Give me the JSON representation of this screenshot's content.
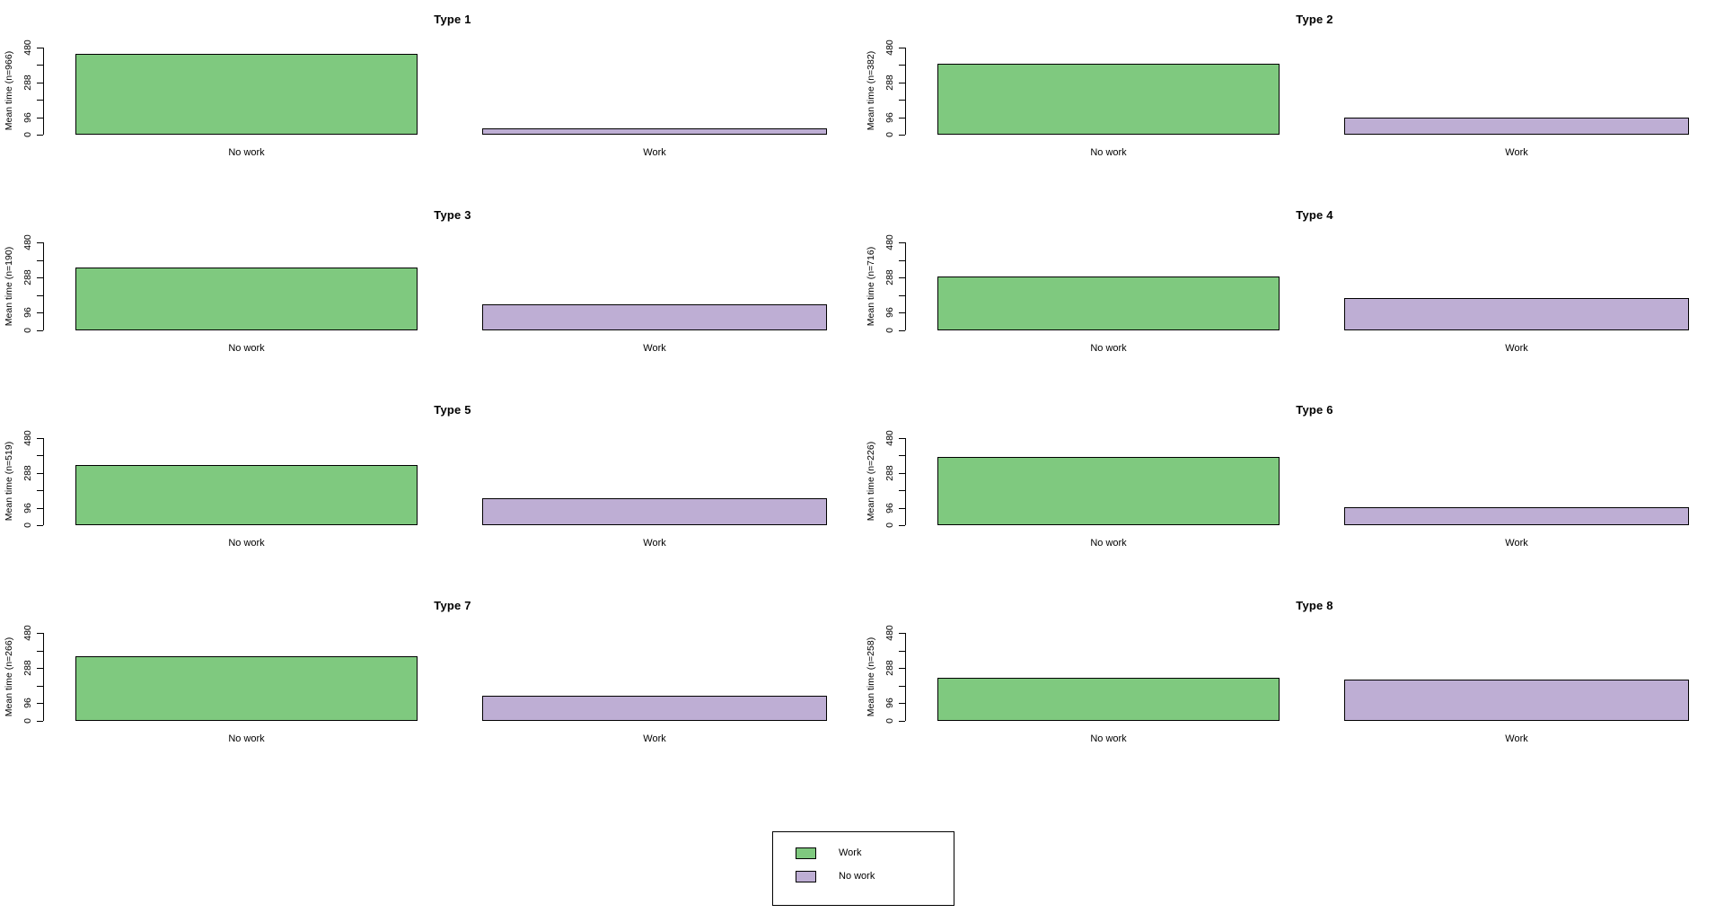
{
  "figure": {
    "background": "#ffffff",
    "text_color": "#000000",
    "legend": {
      "position": "bottom-center",
      "items": [
        {
          "label": "Work",
          "color": "#7FC97F"
        },
        {
          "label": "No work",
          "color": "#BEAED4"
        }
      ]
    }
  },
  "chart_data": {
    "type": "bar",
    "layout": "small-multiples grid, 4 rows x 2 columns",
    "categories": [
      "No work",
      "Work"
    ],
    "bar_colors": [
      "#7FC97F",
      "#BEAED4"
    ],
    "bar_border_color": "#000000",
    "ylim": [
      0,
      480
    ],
    "yticks_labeled": [
      "0",
      "96",
      "288",
      "480"
    ],
    "yticks_all": [
      0,
      96,
      192,
      288,
      384,
      480
    ],
    "grid": false,
    "legend_entries": [
      {
        "label": "Work",
        "color": "#7FC97F"
      },
      {
        "label": "No work",
        "color": "#BEAED4"
      }
    ],
    "charts": [
      {
        "title": "Type 1",
        "ylabel": "Mean time (n=966)",
        "n": 966,
        "values": [
          445,
          33
        ]
      },
      {
        "title": "Type 2",
        "ylabel": "Mean time (n=382)",
        "n": 382,
        "values": [
          390,
          92
        ]
      },
      {
        "title": "Type 3",
        "ylabel": "Mean time (n=190)",
        "n": 190,
        "values": [
          340,
          140
        ]
      },
      {
        "title": "Type 4",
        "ylabel": "Mean time (n=716)",
        "n": 716,
        "values": [
          292,
          177
        ]
      },
      {
        "title": "Type 5",
        "ylabel": "Mean time (n=519)",
        "n": 519,
        "values": [
          328,
          146
        ]
      },
      {
        "title": "Type 6",
        "ylabel": "Mean time (n=226)",
        "n": 226,
        "values": [
          372,
          100
        ]
      },
      {
        "title": "Type 7",
        "ylabel": "Mean time (n=266)",
        "n": 266,
        "values": [
          352,
          136
        ]
      },
      {
        "title": "Type 8",
        "ylabel": "Mean time (n=258)",
        "n": 258,
        "values": [
          235,
          222
        ]
      }
    ]
  }
}
